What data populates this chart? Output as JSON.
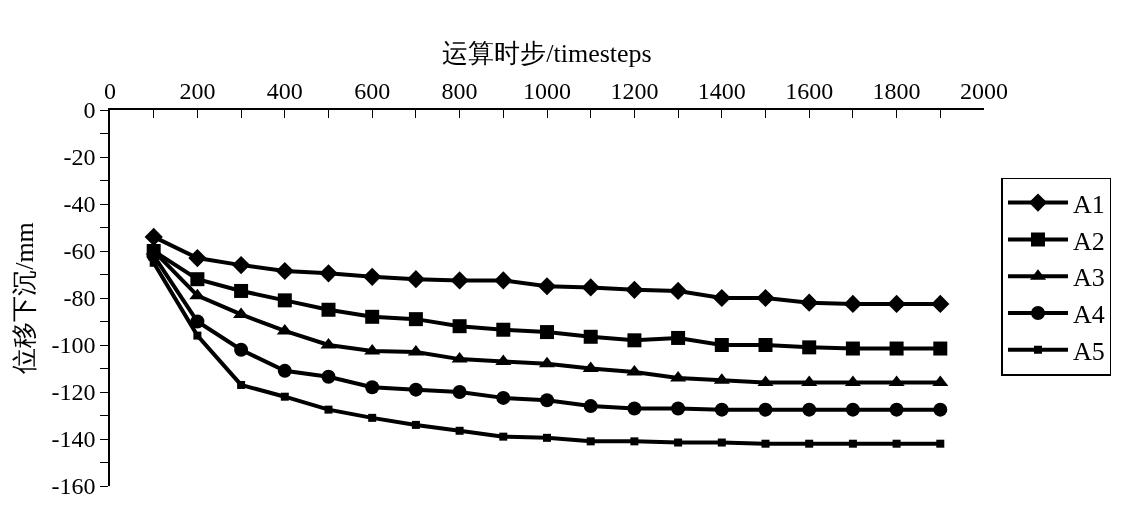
{
  "chart_data": {
    "type": "line",
    "xlabel": "运算时步/timesteps",
    "ylabel": "位移下沉/mm",
    "x": [
      100,
      200,
      300,
      400,
      500,
      600,
      700,
      800,
      900,
      1000,
      1100,
      1200,
      1300,
      1400,
      1500,
      1600,
      1700,
      1800,
      1900
    ],
    "series": [
      {
        "name": "A1",
        "color": "#000000",
        "marker": "diamond",
        "values": [
          -54,
          -63,
          -66,
          -68.5,
          -69.5,
          -71,
          -72,
          -72.5,
          -72.5,
          -75,
          -75.5,
          -76.5,
          -77,
          -80,
          -80,
          -82,
          -82.5,
          -82.5,
          -82.5
        ]
      },
      {
        "name": "A2",
        "color": "#000000",
        "marker": "square",
        "values": [
          -60,
          -72,
          -77,
          -81,
          -85,
          -88,
          -89,
          -92,
          -93.5,
          -94.5,
          -96.5,
          -98,
          -97,
          -100,
          -100,
          -101,
          -101.5,
          -101.5,
          -101.5
        ]
      },
      {
        "name": "A3",
        "color": "#000000",
        "marker": "triangle",
        "values": [
          -60,
          -79,
          -87,
          -94,
          -100,
          -102.5,
          -103,
          -106,
          -107,
          -108,
          -110,
          -111.5,
          -114,
          -115,
          -116,
          -116,
          -116,
          -116,
          -116
        ]
      },
      {
        "name": "A4",
        "color": "#000000",
        "marker": "circle",
        "values": [
          -62,
          -90,
          -102,
          -111,
          -113.5,
          -118,
          -119,
          -120,
          -122.5,
          -123.5,
          -126,
          -127,
          -127,
          -127.5,
          -127.5,
          -127.5,
          -127.5,
          -127.5,
          -127.5
        ]
      },
      {
        "name": "A5",
        "color": "#000000",
        "marker": "square",
        "values": [
          -65,
          -96,
          -117,
          -122,
          -127.5,
          -131,
          -134,
          -136.5,
          -139,
          -139.5,
          -141,
          -141,
          -141.5,
          -141.5,
          -142,
          -142,
          -142,
          -142,
          -142
        ]
      }
    ],
    "xlim": [
      0,
      2000
    ],
    "xticks": [
      0,
      {
        "value": 100,
        "label": null
      },
      200,
      {
        "value": 300,
        "label": null
      },
      400,
      {
        "value": 500,
        "label": null
      },
      600,
      {
        "value": 700,
        "label": null
      },
      800,
      {
        "value": 900,
        "label": null
      },
      1000,
      {
        "value": 1100,
        "label": null
      },
      1200,
      {
        "value": 1300,
        "label": null
      },
      1400,
      {
        "value": 1500,
        "label": null
      },
      1600,
      {
        "value": 1700,
        "label": null
      },
      1800,
      {
        "value": 1900,
        "label": null
      },
      2000
    ],
    "ylim": [
      -160,
      0
    ],
    "yticks": [
      0,
      {
        "value": -10,
        "label": null
      },
      -20,
      {
        "value": -30,
        "label": null
      },
      -40,
      {
        "value": -50,
        "label": null
      },
      -60,
      {
        "value": -70,
        "label": null
      },
      -80,
      {
        "value": -90,
        "label": null
      },
      -100,
      {
        "value": -110,
        "label": null
      },
      -120,
      {
        "value": -130,
        "label": null
      },
      -140,
      {
        "value": -150,
        "label": null
      },
      -160
    ],
    "legend": "right",
    "line_style": "solid"
  }
}
